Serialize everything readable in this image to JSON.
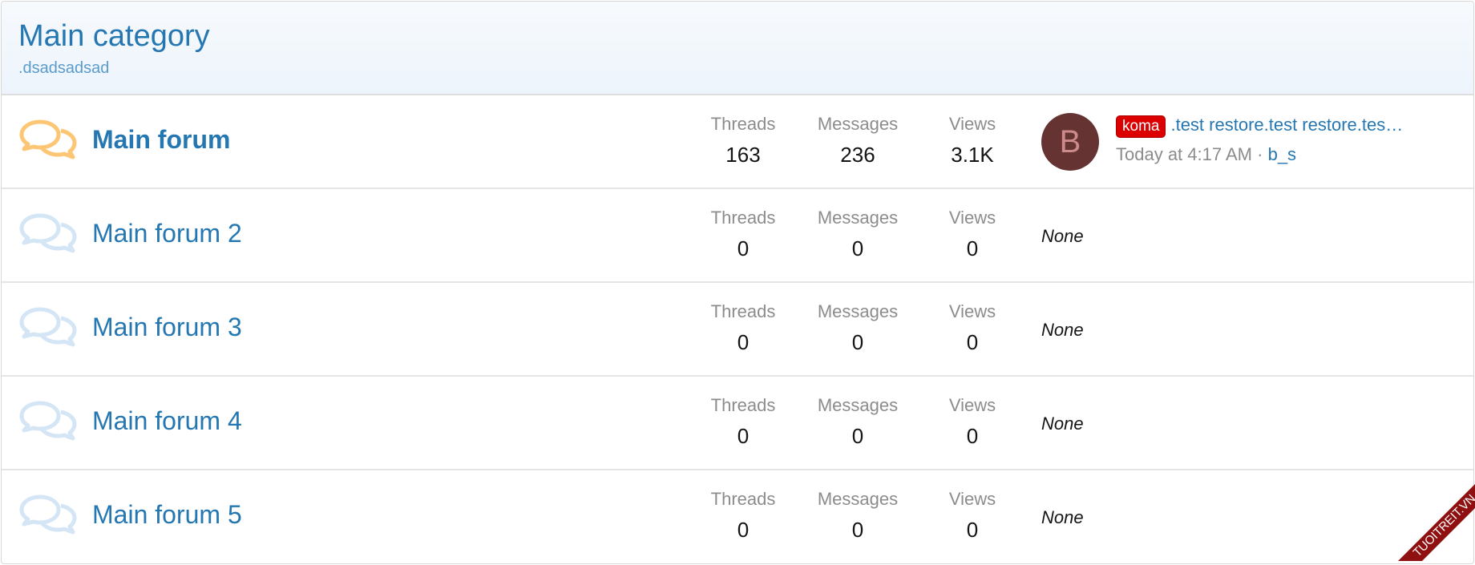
{
  "category": {
    "title": "Main category",
    "description": ".dsadsadsad"
  },
  "forums": [
    {
      "name": "Main forum",
      "unread": true,
      "threads_label": "Threads",
      "threads": "163",
      "messages_label": "Messages",
      "messages": "236",
      "views_label": "Views",
      "views": "3.1K",
      "latest": {
        "avatar_letter": "B",
        "prefix": "koma",
        "title": ".test restore.test restore.tes…",
        "time": "Today at 4:17 AM",
        "separator": "·",
        "user": "b_s"
      }
    },
    {
      "name": "Main forum 2",
      "unread": false,
      "threads_label": "Threads",
      "threads": "0",
      "messages_label": "Messages",
      "messages": "0",
      "views_label": "Views",
      "views": "0",
      "none": "None"
    },
    {
      "name": "Main forum 3",
      "unread": false,
      "threads_label": "Threads",
      "threads": "0",
      "messages_label": "Messages",
      "messages": "0",
      "views_label": "Views",
      "views": "0",
      "none": "None"
    },
    {
      "name": "Main forum 4",
      "unread": false,
      "threads_label": "Threads",
      "threads": "0",
      "messages_label": "Messages",
      "messages": "0",
      "views_label": "Views",
      "views": "0",
      "none": "None"
    },
    {
      "name": "Main forum 5",
      "unread": false,
      "threads_label": "Threads",
      "threads": "0",
      "messages_label": "Messages",
      "messages": "0",
      "views_label": "Views",
      "views": "0",
      "none": "None"
    }
  ],
  "colors": {
    "link": "#2577b1",
    "unread_icon": "#fcc674",
    "read_icon": "#d4e6f6",
    "badge": "#dc0000",
    "avatar_bg": "#663333"
  },
  "watermark": "TUOITREIT.VN"
}
